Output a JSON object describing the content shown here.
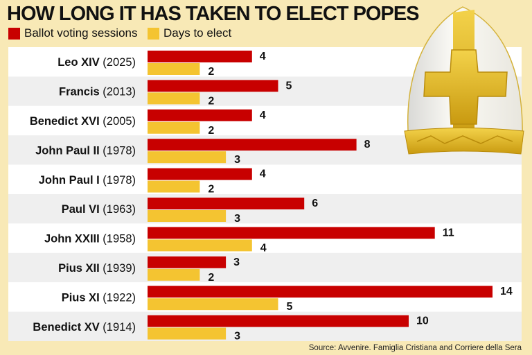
{
  "chart_data": {
    "type": "bar",
    "orientation": "horizontal",
    "title": "HOW LONG IT HAS TAKEN TO ELECT POPES",
    "categories": [
      {
        "name": "Leo XIV",
        "year": "(2025)"
      },
      {
        "name": "Francis",
        "year": "(2013)"
      },
      {
        "name": "Benedict XVI",
        "year": "(2005)"
      },
      {
        "name": "John Paul II",
        "year": "(1978)"
      },
      {
        "name": "John Paul I",
        "year": "(1978)"
      },
      {
        "name": "Paul VI",
        "year": "(1963)"
      },
      {
        "name": "John XXIII",
        "year": "(1958)"
      },
      {
        "name": "Pius XII",
        "year": "(1939)"
      },
      {
        "name": "Pius XI",
        "year": "(1922)"
      },
      {
        "name": "Benedict XV",
        "year": "(1914)"
      }
    ],
    "series": [
      {
        "name": "Ballot voting sessions",
        "color": "#c80000",
        "values": [
          4,
          5,
          4,
          8,
          4,
          6,
          11,
          3,
          14,
          10
        ]
      },
      {
        "name": "Days to elect",
        "color": "#f4c431",
        "values": [
          2,
          2,
          2,
          3,
          2,
          3,
          4,
          2,
          5,
          3
        ]
      }
    ],
    "legend": "top-left",
    "grid": false,
    "source": "Source: Avvenire. Famiglia Cristiana and Corriere della Sera"
  },
  "colors": {
    "background": "#f8e9b6",
    "row_alt": "#efefef"
  },
  "decoration": "mitre-illustration"
}
